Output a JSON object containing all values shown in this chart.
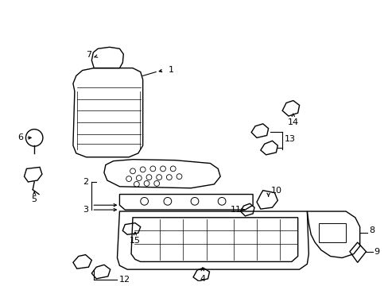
{
  "background_color": "#ffffff",
  "line_color": "#000000",
  "line_width": 1.0,
  "figsize": [
    4.89,
    3.6
  ],
  "dpi": 100
}
